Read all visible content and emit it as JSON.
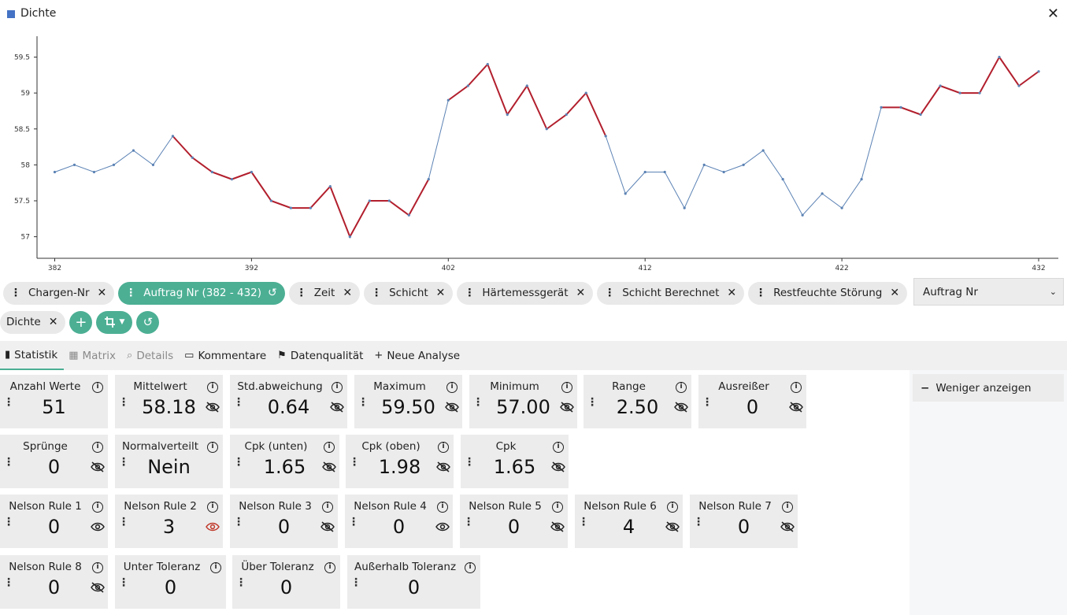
{
  "window": {
    "title": "Dichte"
  },
  "chart_data": {
    "type": "line",
    "x": [
      382,
      383,
      384,
      385,
      386,
      387,
      388,
      389,
      390,
      391,
      392,
      393,
      394,
      395,
      396,
      397,
      398,
      399,
      400,
      401,
      402,
      403,
      404,
      405,
      406,
      407,
      408,
      409,
      410,
      411,
      412,
      413,
      414,
      415,
      416,
      417,
      418,
      419,
      420,
      421,
      422,
      423,
      424,
      425,
      426,
      427,
      428,
      429,
      430,
      431,
      432
    ],
    "y": [
      57.9,
      58.0,
      57.9,
      58.0,
      58.2,
      58.0,
      58.4,
      58.1,
      57.9,
      57.8,
      57.9,
      57.5,
      57.4,
      57.4,
      57.7,
      57.0,
      57.5,
      57.5,
      57.3,
      57.8,
      58.9,
      59.1,
      59.4,
      58.7,
      59.1,
      58.5,
      58.7,
      59.0,
      58.4,
      57.6,
      57.9,
      57.9,
      57.4,
      58.0,
      57.9,
      58.0,
      58.2,
      57.8,
      57.3,
      57.6,
      57.4,
      57.8,
      58.8,
      58.8,
      58.7,
      59.1,
      59.0,
      59.0,
      59.5,
      59.1,
      59.3
    ],
    "highlight_segments": [
      [
        388,
        401
      ],
      [
        402,
        410
      ],
      [
        424,
        432
      ]
    ],
    "xticks": [
      382,
      392,
      402,
      412,
      422,
      432
    ],
    "yticks": [
      57,
      57.5,
      58,
      58.5,
      59,
      59.5
    ],
    "xlim": [
      381.1,
      433.0
    ],
    "ylim": [
      56.7,
      59.9
    ],
    "colors": {
      "line": "#5b82b4",
      "highlight": "#b21f2d"
    }
  },
  "filters": {
    "row1": [
      {
        "label": "Chargen-Nr",
        "active": false
      },
      {
        "label": "Auftrag Nr (382 - 432)",
        "active": true
      },
      {
        "label": "Zeit",
        "active": false
      },
      {
        "label": "Schicht",
        "active": false
      },
      {
        "label": "Härtemessgerät",
        "active": false
      },
      {
        "label": "Schicht Berechnet",
        "active": false
      },
      {
        "label": "Restfeuchte Störung",
        "active": false
      }
    ],
    "row2": [
      {
        "label": "Dichte"
      }
    ]
  },
  "select": {
    "value": "Auftrag Nr"
  },
  "tabs": [
    {
      "label": "Statistik",
      "icon": "bar-chart-icon"
    },
    {
      "label": "Matrix",
      "icon": "grid-icon"
    },
    {
      "label": "Details",
      "icon": "search-icon"
    },
    {
      "label": "Kommentare",
      "icon": "comment-icon"
    },
    {
      "label": "Datenqualität",
      "icon": "flag-icon"
    },
    {
      "label": "Neue Analyse",
      "icon": "plus-icon"
    }
  ],
  "side": {
    "less_label": "Weniger anzeigen"
  },
  "stats": [
    {
      "label": "Anzahl Werte",
      "value": "51",
      "eye": "none"
    },
    {
      "label": "Mittelwert",
      "value": "58.18",
      "eye": "hidden"
    },
    {
      "label": "Std.abweichung",
      "value": "0.64",
      "eye": "hidden"
    },
    {
      "label": "Maximum",
      "value": "59.50",
      "eye": "hidden"
    },
    {
      "label": "Minimum",
      "value": "57.00",
      "eye": "hidden"
    },
    {
      "label": "Range",
      "value": "2.50",
      "eye": "hidden"
    },
    {
      "label": "Ausreißer",
      "value": "0",
      "eye": "hidden"
    },
    {
      "label": "Sprünge",
      "value": "0",
      "eye": "hidden"
    },
    {
      "label": "Normalverteilt",
      "value": "Nein",
      "eye": "none"
    },
    {
      "label": "Cpk (unten)",
      "value": "1.65",
      "eye": "hidden"
    },
    {
      "label": "Cpk (oben)",
      "value": "1.98",
      "eye": "hidden"
    },
    {
      "label": "Cpk",
      "value": "1.65",
      "eye": "hidden"
    },
    {
      "label": "Nelson Rule 1",
      "value": "0",
      "eye": "visible"
    },
    {
      "label": "Nelson Rule 2",
      "value": "3",
      "eye": "visible-red"
    },
    {
      "label": "Nelson Rule 3",
      "value": "0",
      "eye": "hidden"
    },
    {
      "label": "Nelson Rule 4",
      "value": "0",
      "eye": "visible"
    },
    {
      "label": "Nelson Rule 5",
      "value": "0",
      "eye": "hidden"
    },
    {
      "label": "Nelson Rule 6",
      "value": "4",
      "eye": "hidden"
    },
    {
      "label": "Nelson Rule 7",
      "value": "0",
      "eye": "hidden"
    },
    {
      "label": "Nelson Rule 8",
      "value": "0",
      "eye": "hidden"
    },
    {
      "label": "Unter Toleranz",
      "value": "0",
      "eye": "none"
    },
    {
      "label": "Über Toleranz",
      "value": "0",
      "eye": "none"
    },
    {
      "label": "Außerhalb Toleranz",
      "value": "0",
      "eye": "none"
    }
  ]
}
